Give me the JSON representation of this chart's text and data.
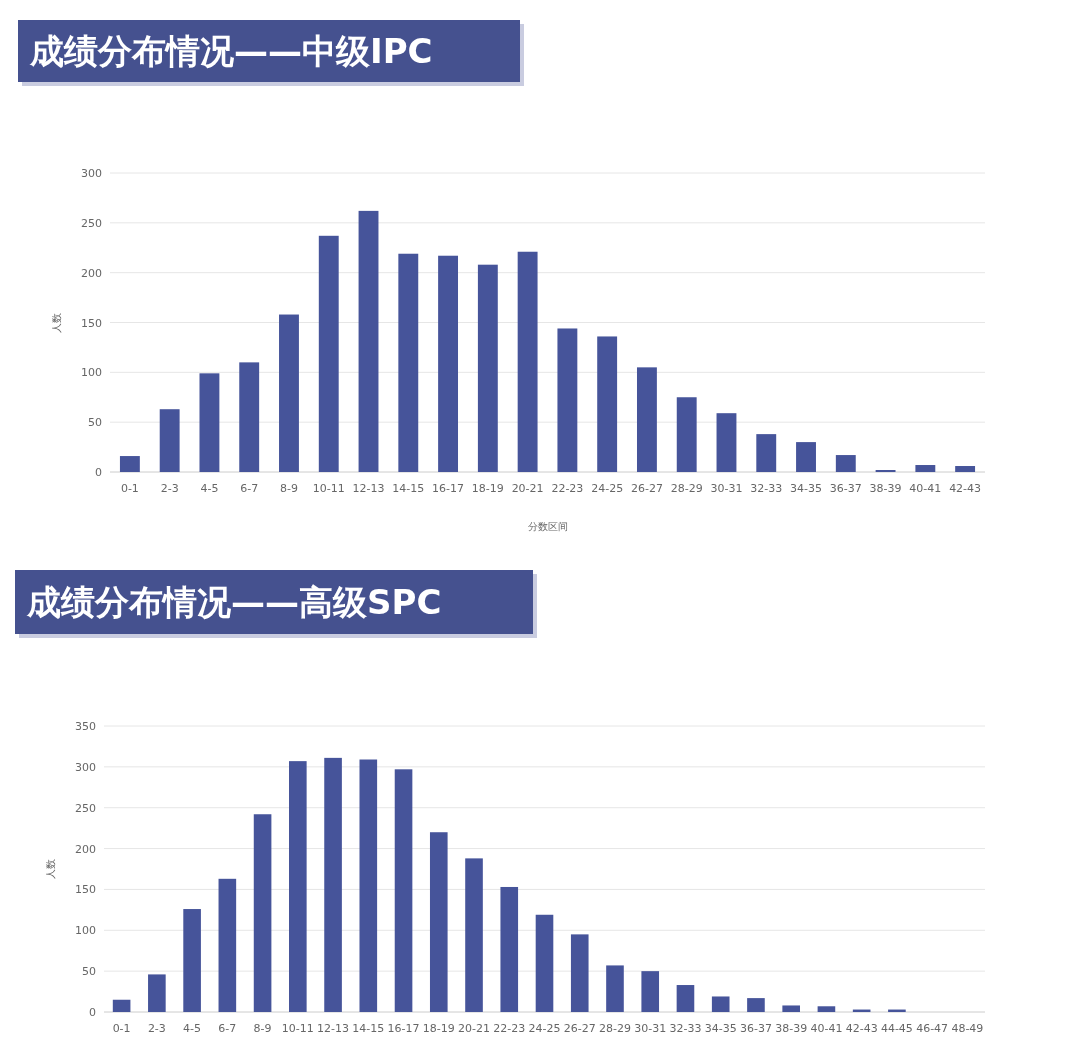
{
  "chart_data": [
    {
      "type": "bar",
      "title": "成绩分布情况——中级IPC",
      "ylabel": "人数",
      "xlabel": "分数区间",
      "color": "#46549a",
      "ylim": [
        0,
        300
      ],
      "yticks": [
        0,
        50,
        100,
        150,
        200,
        250,
        300
      ],
      "grid": "y",
      "categories": [
        "0-1",
        "2-3",
        "4-5",
        "6-7",
        "8-9",
        "10-11",
        "12-13",
        "14-15",
        "16-17",
        "18-19",
        "20-21",
        "22-23",
        "24-25",
        "26-27",
        "28-29",
        "30-31",
        "32-33",
        "34-35",
        "36-37",
        "38-39",
        "40-41",
        "42-43"
      ],
      "values": [
        16,
        63,
        99,
        110,
        158,
        237,
        262,
        219,
        217,
        208,
        221,
        144,
        136,
        105,
        75,
        59,
        38,
        30,
        17,
        2,
        7,
        6
      ]
    },
    {
      "type": "bar",
      "title": "成绩分布情况——高级SPC",
      "ylabel": "人数",
      "color": "#46549a",
      "ylim": [
        0,
        350
      ],
      "yticks": [
        0,
        50,
        100,
        150,
        200,
        250,
        300,
        350
      ],
      "grid": "y",
      "categories": [
        "0-1",
        "2-3",
        "4-5",
        "6-7",
        "8-9",
        "10-11",
        "12-13",
        "14-15",
        "16-17",
        "18-19",
        "20-21",
        "22-23",
        "24-25",
        "26-27",
        "28-29",
        "30-31",
        "32-33",
        "34-35",
        "36-37",
        "38-39",
        "40-41",
        "42-43",
        "44-45",
        "46-47",
        "48-49"
      ],
      "values": [
        15,
        46,
        126,
        163,
        242,
        307,
        311,
        309,
        297,
        220,
        188,
        153,
        119,
        95,
        57,
        50,
        33,
        19,
        17,
        8,
        7,
        3,
        3,
        0,
        0
      ]
    }
  ]
}
